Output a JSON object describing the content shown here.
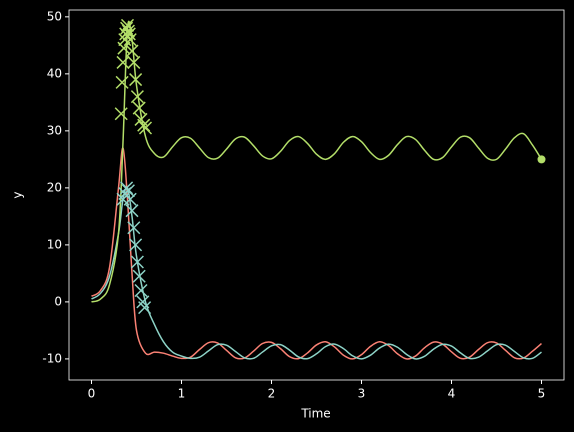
{
  "chart_data": {
    "type": "line",
    "xlabel": "Time",
    "ylabel": "y",
    "xlim": [
      -0.25,
      5.25
    ],
    "ylim": [
      -13.7,
      51.2
    ],
    "xticks": [
      0,
      1,
      2,
      3,
      4,
      5
    ],
    "yticks": [
      -10,
      0,
      10,
      20,
      30,
      40,
      50
    ],
    "series": [
      {
        "color": "#fa8174",
        "x": [
          0,
          0.1,
          0.2,
          0.3,
          0.35,
          0.4,
          0.45,
          0.5,
          0.6,
          0.7,
          0.8,
          0.9,
          1.0,
          1.1,
          1.2,
          1.3,
          1.4,
          1.5,
          1.6,
          1.7,
          1.8,
          1.9,
          2.0,
          2.1,
          2.2,
          2.3,
          2.4,
          2.5,
          2.6,
          2.7,
          2.8,
          2.9,
          3.0,
          3.1,
          3.2,
          3.3,
          3.4,
          3.5,
          3.6,
          3.7,
          3.8,
          3.9,
          4.0,
          4.1,
          4.2,
          4.3,
          4.4,
          4.5,
          4.6,
          4.7,
          4.8,
          4.9,
          5.0
        ],
        "values": [
          1,
          2,
          6,
          20,
          27,
          18,
          5,
          -5,
          -9,
          -8.8,
          -9,
          -9.5,
          -9.9,
          -9.7,
          -8.35,
          -7.15,
          -7.2,
          -8.5,
          -9.8,
          -9.85,
          -8.65,
          -7.3,
          -7.1,
          -8.2,
          -9.6,
          -9.95,
          -8.95,
          -7.55,
          -7,
          -7.9,
          -9.35,
          -10,
          -9.25,
          -7.8,
          -7,
          -7.65,
          -9.1,
          -10,
          -9.5,
          -8.05,
          -7.05,
          -7.4,
          -8.75,
          -9.9,
          -9.7,
          -8.35,
          -7.15,
          -7.2,
          -8.5,
          -9.8,
          -9.85,
          -8.65,
          -7.3
        ]
      },
      {
        "color": "#8dd3c7",
        "x": [
          0,
          0.1,
          0.2,
          0.3,
          0.35,
          0.4,
          0.45,
          0.5,
          0.6,
          0.7,
          0.8,
          0.9,
          1.0,
          1.1,
          1.2,
          1.3,
          1.4,
          1.5,
          1.6,
          1.7,
          1.8,
          1.9,
          2.0,
          2.1,
          2.2,
          2.3,
          2.4,
          2.5,
          2.6,
          2.7,
          2.8,
          2.9,
          3.0,
          3.1,
          3.2,
          3.3,
          3.4,
          3.5,
          3.6,
          3.7,
          3.8,
          3.9,
          4.0,
          4.1,
          4.2,
          4.3,
          4.4,
          4.5,
          4.6,
          4.7,
          4.8,
          4.9,
          5.0
        ],
        "values": [
          0.5,
          1.5,
          4.5,
          12,
          18,
          20,
          15,
          8,
          0,
          -4,
          -7,
          -8.8,
          -9.5,
          -9.9,
          -9.7,
          -8.6,
          -7.5,
          -7.6,
          -8.7,
          -9.8,
          -9.9,
          -8.8,
          -7.7,
          -7.5,
          -8.45,
          -9.65,
          -9.95,
          -9.1,
          -7.85,
          -7.4,
          -8.2,
          -9.45,
          -10,
          -9.35,
          -8.1,
          -7.4,
          -7.95,
          -9.2,
          -10,
          -9.55,
          -8.3,
          -7.45,
          -7.75,
          -8.95,
          -9.9,
          -9.7,
          -8.6,
          -7.5,
          -7.6,
          -8.7,
          -9.8,
          -9.9,
          -8.8
        ]
      },
      {
        "color": "#b3de69",
        "x": [
          0,
          0.1,
          0.2,
          0.3,
          0.35,
          0.4,
          0.45,
          0.5,
          0.6,
          0.7,
          0.8,
          0.9,
          1.0,
          1.1,
          1.2,
          1.3,
          1.4,
          1.5,
          1.6,
          1.7,
          1.8,
          1.9,
          2.0,
          2.1,
          2.2,
          2.3,
          2.4,
          2.5,
          2.6,
          2.7,
          2.8,
          2.9,
          3.0,
          3.1,
          3.2,
          3.3,
          3.4,
          3.5,
          3.6,
          3.7,
          3.8,
          3.9,
          4.0,
          4.1,
          4.2,
          4.3,
          4.4,
          4.5,
          4.6,
          4.7,
          4.8,
          4.9,
          5.0
        ],
        "values": [
          0,
          0.5,
          3,
          12,
          28,
          48,
          46,
          38,
          29,
          26,
          25.4,
          27.2,
          28.8,
          28.7,
          27,
          25.3,
          25.2,
          26.8,
          28.6,
          28.9,
          27.4,
          25.6,
          25.1,
          26.4,
          28.3,
          29,
          27.8,
          25.9,
          25,
          26,
          28,
          29,
          28.1,
          26.2,
          25,
          25.7,
          27.6,
          29,
          28.5,
          26.6,
          25,
          25.3,
          27.2,
          28.9,
          28.8,
          27,
          25.2,
          25,
          26.8,
          28.8,
          29.5,
          27.5,
          25
        ]
      },
      {
        "color": "#b3de69",
        "marker": "x",
        "x": [
          0.33,
          0.34,
          0.35,
          0.36,
          0.37,
          0.38,
          0.39,
          0.4,
          0.41,
          0.42,
          0.43,
          0.45,
          0.47,
          0.49,
          0.51,
          0.53,
          0.55,
          0.58,
          0.6
        ],
        "values": [
          33,
          38.5,
          42,
          44.5,
          46,
          47,
          48,
          48.5,
          47.5,
          47,
          46,
          44,
          42,
          39,
          36,
          34,
          32,
          31,
          30.5
        ]
      },
      {
        "color": "#8dd3c7",
        "marker": "x",
        "x": [
          0.35,
          0.37,
          0.39,
          0.41,
          0.43,
          0.45,
          0.47,
          0.49,
          0.51,
          0.53,
          0.55,
          0.57,
          0.59
        ],
        "values": [
          18,
          19,
          20,
          19.5,
          18,
          16,
          13,
          10,
          7,
          4.5,
          2,
          0,
          -1
        ]
      },
      {
        "color": "#b3de69",
        "marker": "o",
        "x": [
          5
        ],
        "values": [
          25
        ]
      }
    ]
  }
}
